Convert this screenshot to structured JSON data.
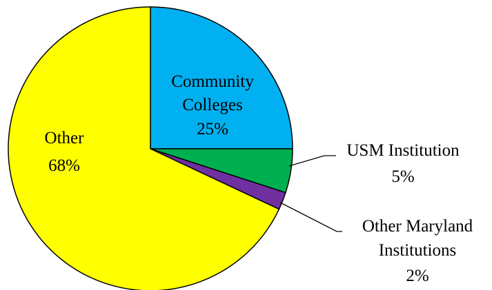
{
  "chart_data": {
    "type": "pie",
    "title": "",
    "start_angle_deg": 0,
    "direction": "clockwise",
    "slices": [
      {
        "label": "Community Colleges",
        "label_lines": [
          "Community",
          "Colleges"
        ],
        "value": 25,
        "value_text": "25%",
        "color": "#00b0f0"
      },
      {
        "label": "USM Institution",
        "label_lines": [
          "USM Institution"
        ],
        "value": 5,
        "value_text": "5%",
        "color": "#00b050"
      },
      {
        "label": "Other Maryland Institutions",
        "label_lines": [
          "Other Maryland",
          "Institutions"
        ],
        "value": 2,
        "value_text": "2%",
        "color": "#7030a0"
      },
      {
        "label": "Other",
        "label_lines": [
          "Other"
        ],
        "value": 68,
        "value_text": "68%",
        "color": "#ffff00"
      }
    ]
  }
}
